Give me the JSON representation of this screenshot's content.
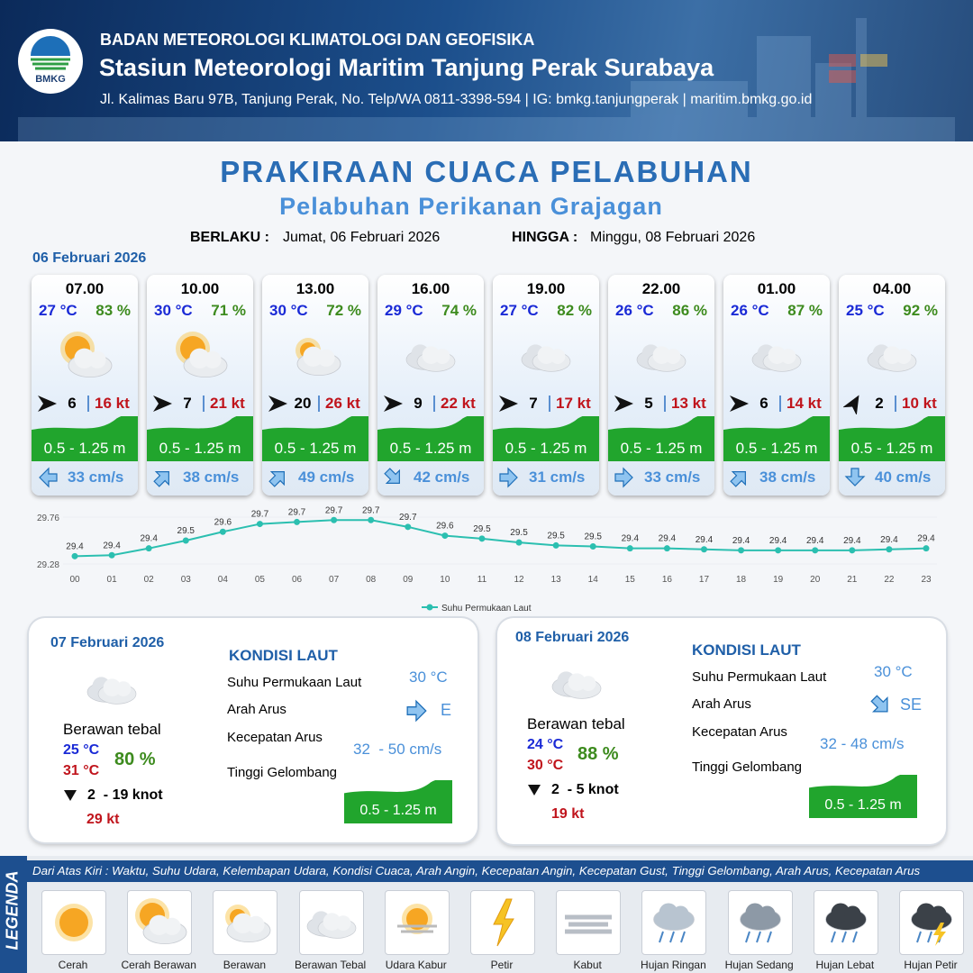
{
  "header": {
    "logo_text": "BMKG",
    "agency": "BADAN METEOROLOGI KLIMATOLOGI DAN GEOFISIKA",
    "station": "Stasiun Meteorologi Maritim Tanjung Perak Surabaya",
    "address": "Jl. Kalimas Baru 97B, Tanjung Perak, No. Telp/WA 0811-3398-594 | IG: bmkg.tanjungperak | maritim.bmkg.go.id"
  },
  "title": "PRAKIRAAN CUACA PELABUHAN",
  "subtitle": "Pelabuhan Perikanan Grajagan",
  "validity": {
    "from_label": "BERLAKU :",
    "from": "Jumat, 06 Februari 2026",
    "to_label": "HINGGA :",
    "to": "Minggu, 08 Februari 2026"
  },
  "forecast_date": "06 Februari 2026",
  "forecast": [
    {
      "time": "07.00",
      "temperature": "27 °C",
      "humidity": "83 %",
      "wind_speed": "6",
      "gust": "16 kt",
      "wave": "0.5 - 1.25 m",
      "current": "33 cm/s"
    },
    {
      "time": "10.00",
      "temperature": "30 °C",
      "humidity": "71 %",
      "wind_speed": "7",
      "gust": "21 kt",
      "wave": "0.5 - 1.25 m",
      "current": "38 cm/s"
    },
    {
      "time": "13.00",
      "temperature": "30 °C",
      "humidity": "72 %",
      "wind_speed": "20",
      "gust": "26 kt",
      "wave": "0.5 - 1.25 m",
      "current": "49 cm/s"
    },
    {
      "time": "16.00",
      "temperature": "29 °C",
      "humidity": "74 %",
      "wind_speed": "9",
      "gust": "22 kt",
      "wave": "0.5 - 1.25 m",
      "current": "42 cm/s"
    },
    {
      "time": "19.00",
      "temperature": "27 °C",
      "humidity": "82 %",
      "wind_speed": "7",
      "gust": "17 kt",
      "wave": "0.5 - 1.25 m",
      "current": "31 cm/s"
    },
    {
      "time": "22.00",
      "temperature": "26 °C",
      "humidity": "86 %",
      "wind_speed": "5",
      "gust": "13 kt",
      "wave": "0.5 - 1.25 m",
      "current": "33 cm/s"
    },
    {
      "time": "01.00",
      "temperature": "26 °C",
      "humidity": "87 %",
      "wind_speed": "6",
      "gust": "14 kt",
      "wave": "0.5 - 1.25 m",
      "current": "38 cm/s"
    },
    {
      "time": "04.00",
      "temperature": "25 °C",
      "humidity": "92 %",
      "wind_speed": "2",
      "gust": "10 kt",
      "wave": "0.5 - 1.25 m",
      "current": "40 cm/s"
    }
  ],
  "chart_data": {
    "type": "line",
    "categories": [
      "00",
      "01",
      "02",
      "03",
      "04",
      "05",
      "06",
      "07",
      "08",
      "09",
      "10",
      "11",
      "12",
      "13",
      "14",
      "15",
      "16",
      "17",
      "18",
      "19",
      "20",
      "21",
      "22",
      "23"
    ],
    "series": [
      {
        "name": "Suhu Permukaan Laut",
        "color": "#2bbfb0",
        "values": [
          29.36,
          29.37,
          29.44,
          29.52,
          29.61,
          29.69,
          29.71,
          29.73,
          29.73,
          29.66,
          29.57,
          29.54,
          29.5,
          29.47,
          29.46,
          29.44,
          29.44,
          29.43,
          29.42,
          29.42,
          29.42,
          29.42,
          29.43,
          29.44
        ],
        "value_labels": [
          "29.4",
          "29.4",
          "29.4",
          "29.5",
          "29.6",
          "29.7",
          "29.7",
          "29.7",
          "29.7",
          "29.7",
          "29.6",
          "29.5",
          "29.5",
          "29.5",
          "29.5",
          "29.4",
          "29.4",
          "29.4",
          "29.4",
          "29.4",
          "29.4",
          "29.4",
          "29.4",
          "29.4"
        ]
      }
    ],
    "ylim": [
      29.28,
      29.76
    ],
    "yticks": [
      29.28,
      29.76
    ],
    "grid": true
  },
  "daily": [
    {
      "date": "07 Februari 2026",
      "section_title": "KONDISI LAUT",
      "condition": "Berawan tebal",
      "temp_min": "25 °C",
      "temp_max": "31 °C",
      "humidity": "80 %",
      "wind": "2  - 19 knot",
      "gust": "29 kt",
      "sea": [
        {
          "label": "Suhu Permukaan Laut",
          "value": "30 °C"
        },
        {
          "label": "Arah Arus",
          "value": "E"
        },
        {
          "label": "Kecepatan Arus",
          "value": "32  - 50 cm/s"
        },
        {
          "label": "Tinggi Gelombang",
          "value": "0.5 - 1.25 m"
        }
      ]
    },
    {
      "date": "08 Februari 2026",
      "section_title": "KONDISI LAUT",
      "condition": "Berawan tebal",
      "temp_min": "24 °C",
      "temp_max": "30 °C",
      "humidity": "88 %",
      "wind": "2  - 5 knot",
      "gust": "19 kt",
      "sea": [
        {
          "label": "Suhu Permukaan Laut",
          "value": "30 °C"
        },
        {
          "label": "Arah Arus",
          "value": "SE"
        },
        {
          "label": "Kecepatan Arus",
          "value": "32 - 48 cm/s"
        },
        {
          "label": "Tinggi Gelombang",
          "value": "0.5 - 1.25 m"
        }
      ]
    }
  ],
  "legend": {
    "title": "LEGENDA",
    "description": "Dari Atas Kiri : Waktu, Suhu Udara, Kelembapan Udara, Kondisi Cuaca, Arah Angin, Kecepatan Angin, Kecepatan Gust, Tinggi Gelombang, Arah Arus, Kecepatan Arus",
    "items": [
      "Cerah",
      "Cerah Berawan",
      "Berawan",
      "Berawan Tebal",
      "Udara Kabur",
      "Petir",
      "Kabut",
      "Hujan Ringan",
      "Hujan Sedang",
      "Hujan Lebat",
      "Hujan Petir"
    ]
  }
}
